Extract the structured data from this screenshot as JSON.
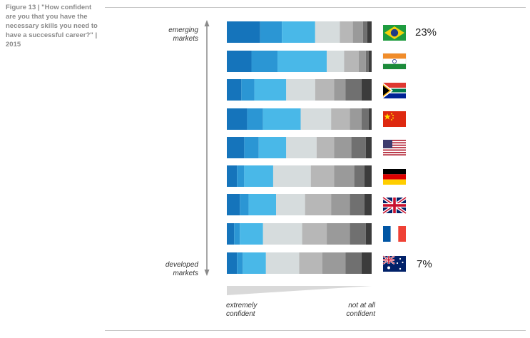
{
  "caption": "Figure 13 | \"How confident are you that you have the necessary skills you need to have a successful career?\" | 2015",
  "axis": {
    "top_label": "emerging markets",
    "bottom_label": "developed markets",
    "left_scale_label": "extremely confident",
    "right_scale_label": "not at all confident"
  },
  "annotations": {
    "top_value": "23%",
    "bottom_value": "7%"
  },
  "colors": [
    "#1574bb",
    "#2b96d4",
    "#49b8e8",
    "#d6dcdd",
    "#b7b7b7",
    "#9a9a9a",
    "#707070",
    "#3c3c3c"
  ],
  "chart_data": {
    "type": "bar",
    "stacked": true,
    "orientation": "horizontal",
    "percent": true,
    "categories": [
      "Brazil",
      "India",
      "South Africa",
      "China",
      "USA",
      "Germany",
      "UK",
      "France",
      "Australia"
    ],
    "series": [
      {
        "values": [
          23,
          17,
          10,
          14,
          12,
          7,
          9,
          5,
          7
        ]
      },
      {
        "values": [
          15,
          18,
          9,
          11,
          10,
          5,
          6,
          4,
          4
        ]
      },
      {
        "values": [
          23,
          34,
          22,
          26,
          19,
          20,
          19,
          16,
          16
        ]
      },
      {
        "values": [
          17,
          12,
          20,
          21,
          21,
          26,
          20,
          27,
          23
        ]
      },
      {
        "values": [
          9,
          10,
          13,
          13,
          12,
          16,
          18,
          17,
          16
        ]
      },
      {
        "values": [
          7,
          5,
          8,
          8,
          12,
          14,
          13,
          16,
          16
        ]
      },
      {
        "values": [
          3,
          2,
          11,
          5,
          10,
          7,
          10,
          11,
          11
        ]
      },
      {
        "values": [
          3,
          2,
          7,
          2,
          4,
          5,
          5,
          4,
          7
        ]
      }
    ],
    "xlim": [
      0,
      100
    ]
  }
}
